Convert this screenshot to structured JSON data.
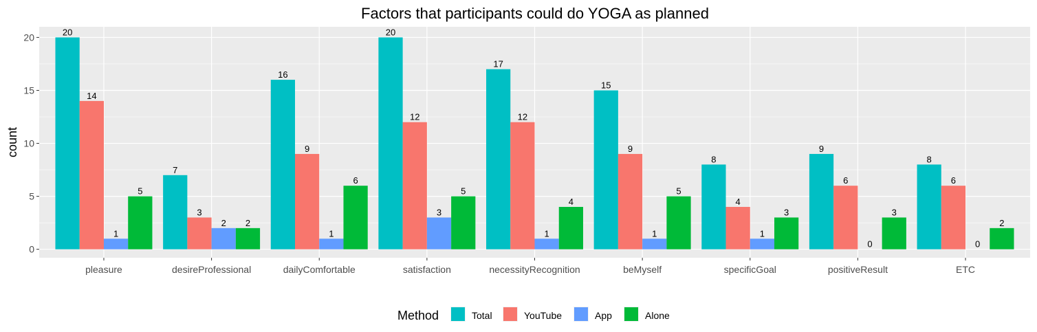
{
  "chart_data": {
    "type": "bar",
    "title": "Factors that participants could do YOGA as planned",
    "xlabel": "",
    "ylabel": "count",
    "categories": [
      "pleasure",
      "desireProfessional",
      "dailyComfortable",
      "satisfaction",
      "necessityRecognition",
      "beMyself",
      "specificGoal",
      "positiveResult",
      "ETC"
    ],
    "series": [
      {
        "name": "Total",
        "color": "#00BFC4",
        "values": [
          20,
          7,
          16,
          20,
          17,
          15,
          8,
          9,
          8
        ]
      },
      {
        "name": "YouTube",
        "color": "#F8766D",
        "values": [
          14,
          3,
          9,
          12,
          12,
          9,
          4,
          6,
          6
        ]
      },
      {
        "name": "App",
        "color": "#619CFF",
        "values": [
          1,
          2,
          1,
          3,
          1,
          1,
          1,
          0,
          0
        ]
      },
      {
        "name": "Alone",
        "color": "#00BA38",
        "values": [
          5,
          2,
          6,
          5,
          4,
          5,
          3,
          3,
          2
        ]
      }
    ],
    "ylim": [
      -0.8,
      21
    ],
    "yticks": [
      0,
      5,
      10,
      15,
      20
    ],
    "grid": true,
    "legend": {
      "title": "Method",
      "placement": "bottom"
    },
    "data_labels": true
  }
}
